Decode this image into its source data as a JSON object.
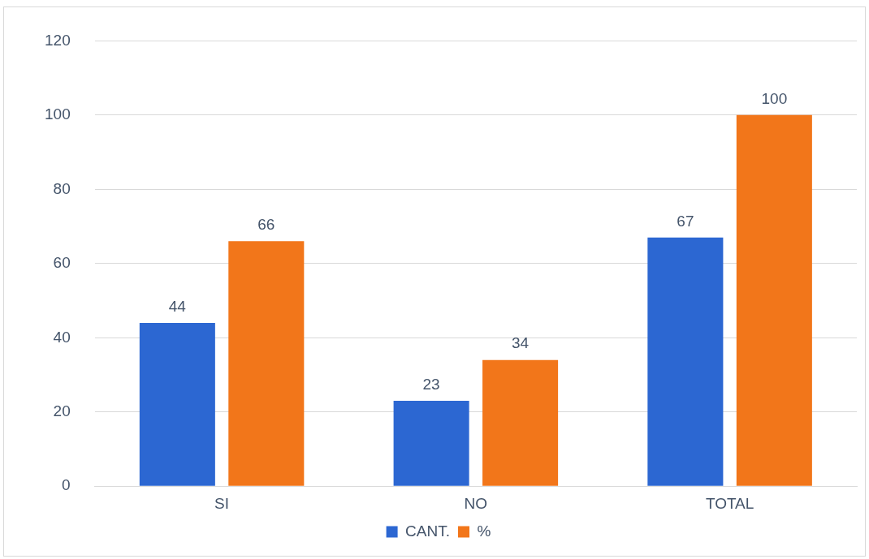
{
  "chart_data": {
    "type": "bar",
    "categories": [
      "SI",
      "NO",
      "TOTAL"
    ],
    "series": [
      {
        "name": "CANT.",
        "color": "#2c67d2",
        "values": [
          44,
          23,
          67
        ]
      },
      {
        "name": "%",
        "color": "#f2761a",
        "values": [
          66,
          34,
          100
        ]
      }
    ],
    "ylim": [
      0,
      120
    ],
    "yticks": [
      0,
      20,
      40,
      60,
      80,
      100,
      120
    ],
    "grid": "y",
    "legend": "bottom",
    "data_labels": true
  }
}
